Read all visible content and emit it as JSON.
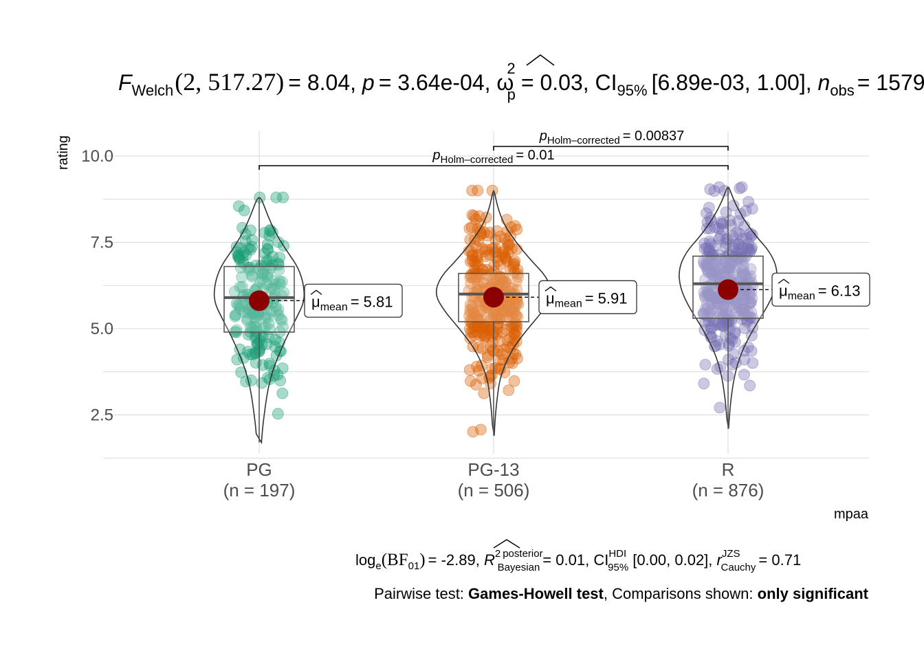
{
  "title": {
    "stat_name": "F",
    "stat_sub": "Welch",
    "df": "(2, 517.27)",
    "stat_value": "8.04",
    "p_symbol": "p",
    "p_value": "3.64e-04",
    "effect_symbol": "ω",
    "effect_sup": "2",
    "effect_sub": "p",
    "effect_value": "0.03",
    "ci_prefix": "CI",
    "ci_sub": "95%",
    "ci_text": "[6.89e-03, 1.00]",
    "n_symbol": "n",
    "n_sub": "obs",
    "n_value": "1579"
  },
  "subtitle": {
    "bf_prefix": "log",
    "bf_sub": "e",
    "bf_open": "(BF",
    "bf_index": "01",
    "bf_close": ")",
    "bf_value": "-2.89",
    "r2_symbol": "R",
    "r2_sup": "2",
    "r2_sup2": "posterior",
    "r2_sub": "Bayesian",
    "r2_value": "0.01",
    "ci_prefix": "CI",
    "ci_sup": "HDI",
    "ci_sub": "95%",
    "ci_text": "[0.00, 0.02]",
    "r_symbol": "r",
    "r_sup": "JZS",
    "r_sub": "Cauchy",
    "r_value": "0.71"
  },
  "caption": {
    "pairwise_prefix": "Pairwise test: ",
    "pairwise_test": "Games-Howell test",
    "comparisons_prefix": ", Comparisons shown: ",
    "comparisons": "only significant"
  },
  "colors": {
    "PG": "#1B9E77",
    "PG-13": "#D95F02",
    "R": "#7570B3",
    "mean_point": "#8B0000"
  },
  "chart_data": {
    "type": "violin-box",
    "title": "F_Welch(2, 517.27) = 8.04, p = 3.64e-04, ω²p = 0.03, CI95% [6.89e-03, 1.00], n_obs = 1579",
    "xlabel": "mpaa",
    "ylabel": "rating",
    "ylim": [
      1.25,
      10.85
    ],
    "yticks": [
      2.5,
      5.0,
      7.5,
      10.0
    ],
    "ytick_labels": [
      "2.5",
      "5.0",
      "7.5",
      "10.0"
    ],
    "grid": true,
    "categories": [
      "PG",
      "PG-13",
      "R"
    ],
    "category_labels": [
      "PG",
      "PG-13",
      "R"
    ],
    "n_labels": [
      "(n = 197)",
      "(n = 506)",
      "(n = 876)"
    ],
    "n": [
      197,
      506,
      876
    ],
    "box": [
      {
        "q1": 4.9,
        "median": 5.9,
        "q3": 6.8,
        "whisker_low": 1.7,
        "whisker_high": 8.8
      },
      {
        "q1": 5.2,
        "median": 6.0,
        "q3": 6.6,
        "whisker_low": 1.9,
        "whisker_high": 9.0
      },
      {
        "q1": 5.3,
        "median": 6.3,
        "q3": 7.1,
        "whisker_low": 2.1,
        "whisker_high": 9.1
      }
    ],
    "violin_min": [
      1.7,
      1.9,
      2.1
    ],
    "violin_max": [
      8.8,
      9.0,
      9.1
    ],
    "violin_density": [
      [
        [
          1.7,
          0.05
        ],
        [
          2.2,
          0.08
        ],
        [
          2.8,
          0.14
        ],
        [
          3.3,
          0.2
        ],
        [
          3.8,
          0.3
        ],
        [
          4.3,
          0.45
        ],
        [
          4.8,
          0.62
        ],
        [
          5.3,
          0.82
        ],
        [
          5.8,
          1.0
        ],
        [
          6.3,
          0.98
        ],
        [
          6.8,
          0.85
        ],
        [
          7.3,
          0.58
        ],
        [
          7.8,
          0.35
        ],
        [
          8.3,
          0.18
        ],
        [
          8.8,
          0.04
        ]
      ],
      [
        [
          1.9,
          0.01
        ],
        [
          2.5,
          0.03
        ],
        [
          3.0,
          0.06
        ],
        [
          3.5,
          0.1
        ],
        [
          4.0,
          0.2
        ],
        [
          4.5,
          0.35
        ],
        [
          5.0,
          0.58
        ],
        [
          5.5,
          0.83
        ],
        [
          6.0,
          1.0
        ],
        [
          6.5,
          0.9
        ],
        [
          7.0,
          0.62
        ],
        [
          7.5,
          0.38
        ],
        [
          8.0,
          0.18
        ],
        [
          8.5,
          0.07
        ],
        [
          9.0,
          0.01
        ]
      ],
      [
        [
          2.1,
          0.01
        ],
        [
          2.7,
          0.04
        ],
        [
          3.2,
          0.08
        ],
        [
          3.7,
          0.14
        ],
        [
          4.2,
          0.24
        ],
        [
          4.7,
          0.4
        ],
        [
          5.2,
          0.6
        ],
        [
          5.7,
          0.82
        ],
        [
          6.2,
          0.97
        ],
        [
          6.7,
          1.0
        ],
        [
          7.2,
          0.86
        ],
        [
          7.7,
          0.55
        ],
        [
          8.2,
          0.3
        ],
        [
          8.7,
          0.12
        ],
        [
          9.1,
          0.02
        ]
      ]
    ],
    "means": [
      5.81,
      5.91,
      6.13
    ],
    "mean_labels": [
      {
        "symbol": "μ",
        "sub": "mean",
        "value": "5.81"
      },
      {
        "symbol": "μ",
        "sub": "mean",
        "value": "5.91"
      },
      {
        "symbol": "μ",
        "sub": "mean",
        "value": "6.13"
      }
    ],
    "comparisons": [
      {
        "from": "PG-13",
        "to": "R",
        "label_symbol": "p",
        "label_sub": "Holm–corrected",
        "value": "0.00837"
      },
      {
        "from": "PG",
        "to": "R",
        "label_symbol": "p",
        "label_sub": "Holm–corrected",
        "value": "0.01"
      }
    ]
  }
}
